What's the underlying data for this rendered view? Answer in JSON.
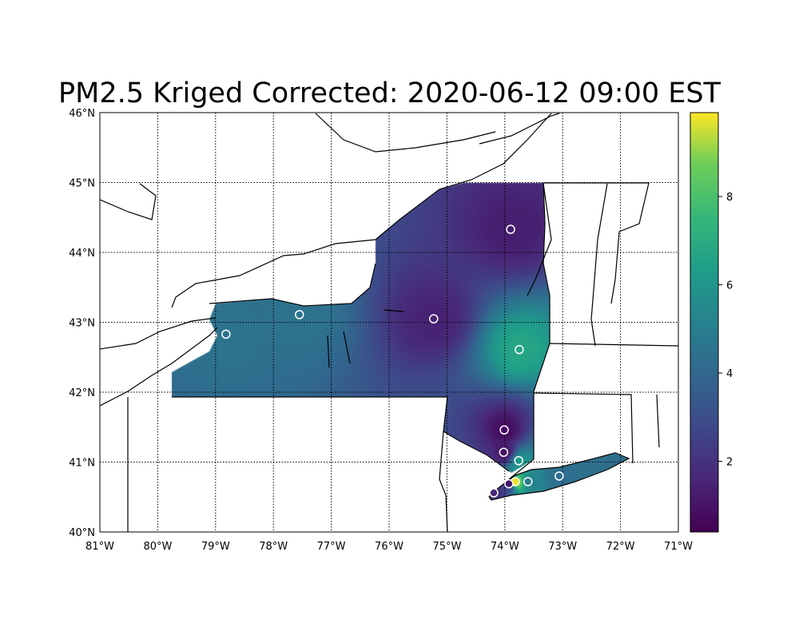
{
  "chart_data": {
    "type": "heatmap",
    "title": "PM2.5 Kriged Corrected: 2020-06-12 09:00 EST",
    "map_extent": {
      "lon": [
        -81,
        -71
      ],
      "lat": [
        40,
        46
      ]
    },
    "x_ticks": [
      "81°W",
      "80°W",
      "79°W",
      "78°W",
      "77°W",
      "76°W",
      "75°W",
      "74°W",
      "73°W",
      "72°W",
      "71°W"
    ],
    "y_ticks": [
      "40°N",
      "41°N",
      "42°N",
      "43°N",
      "44°N",
      "45°N",
      "46°N"
    ],
    "grid": true,
    "colormap": "viridis",
    "colorbar": {
      "range": [
        0.4,
        9.9
      ],
      "ticks": [
        "2",
        "4",
        "6",
        "8"
      ],
      "placement": "right"
    },
    "stations": [
      {
        "lon": -78.82,
        "lat": 42.83,
        "value": 4.0
      },
      {
        "lon": -77.55,
        "lat": 43.11,
        "value": 4.0
      },
      {
        "lon": -75.23,
        "lat": 43.05,
        "value": 1.3
      },
      {
        "lon": -73.9,
        "lat": 44.33,
        "value": 1.2
      },
      {
        "lon": -73.75,
        "lat": 42.61,
        "value": 6.0
      },
      {
        "lon": -74.01,
        "lat": 41.46,
        "value": 0.7
      },
      {
        "lon": -74.02,
        "lat": 41.14,
        "value": 0.8
      },
      {
        "lon": -73.76,
        "lat": 41.02,
        "value": 5.5
      },
      {
        "lon": -73.6,
        "lat": 40.72,
        "value": 4.5
      },
      {
        "lon": -73.06,
        "lat": 40.8,
        "value": 3.8
      },
      {
        "lon": -73.82,
        "lat": 40.72,
        "value": 9.6
      },
      {
        "lon": -73.93,
        "lat": 40.69,
        "value": 1.0
      },
      {
        "lon": -74.19,
        "lat": 40.56,
        "value": 1.5
      }
    ]
  }
}
